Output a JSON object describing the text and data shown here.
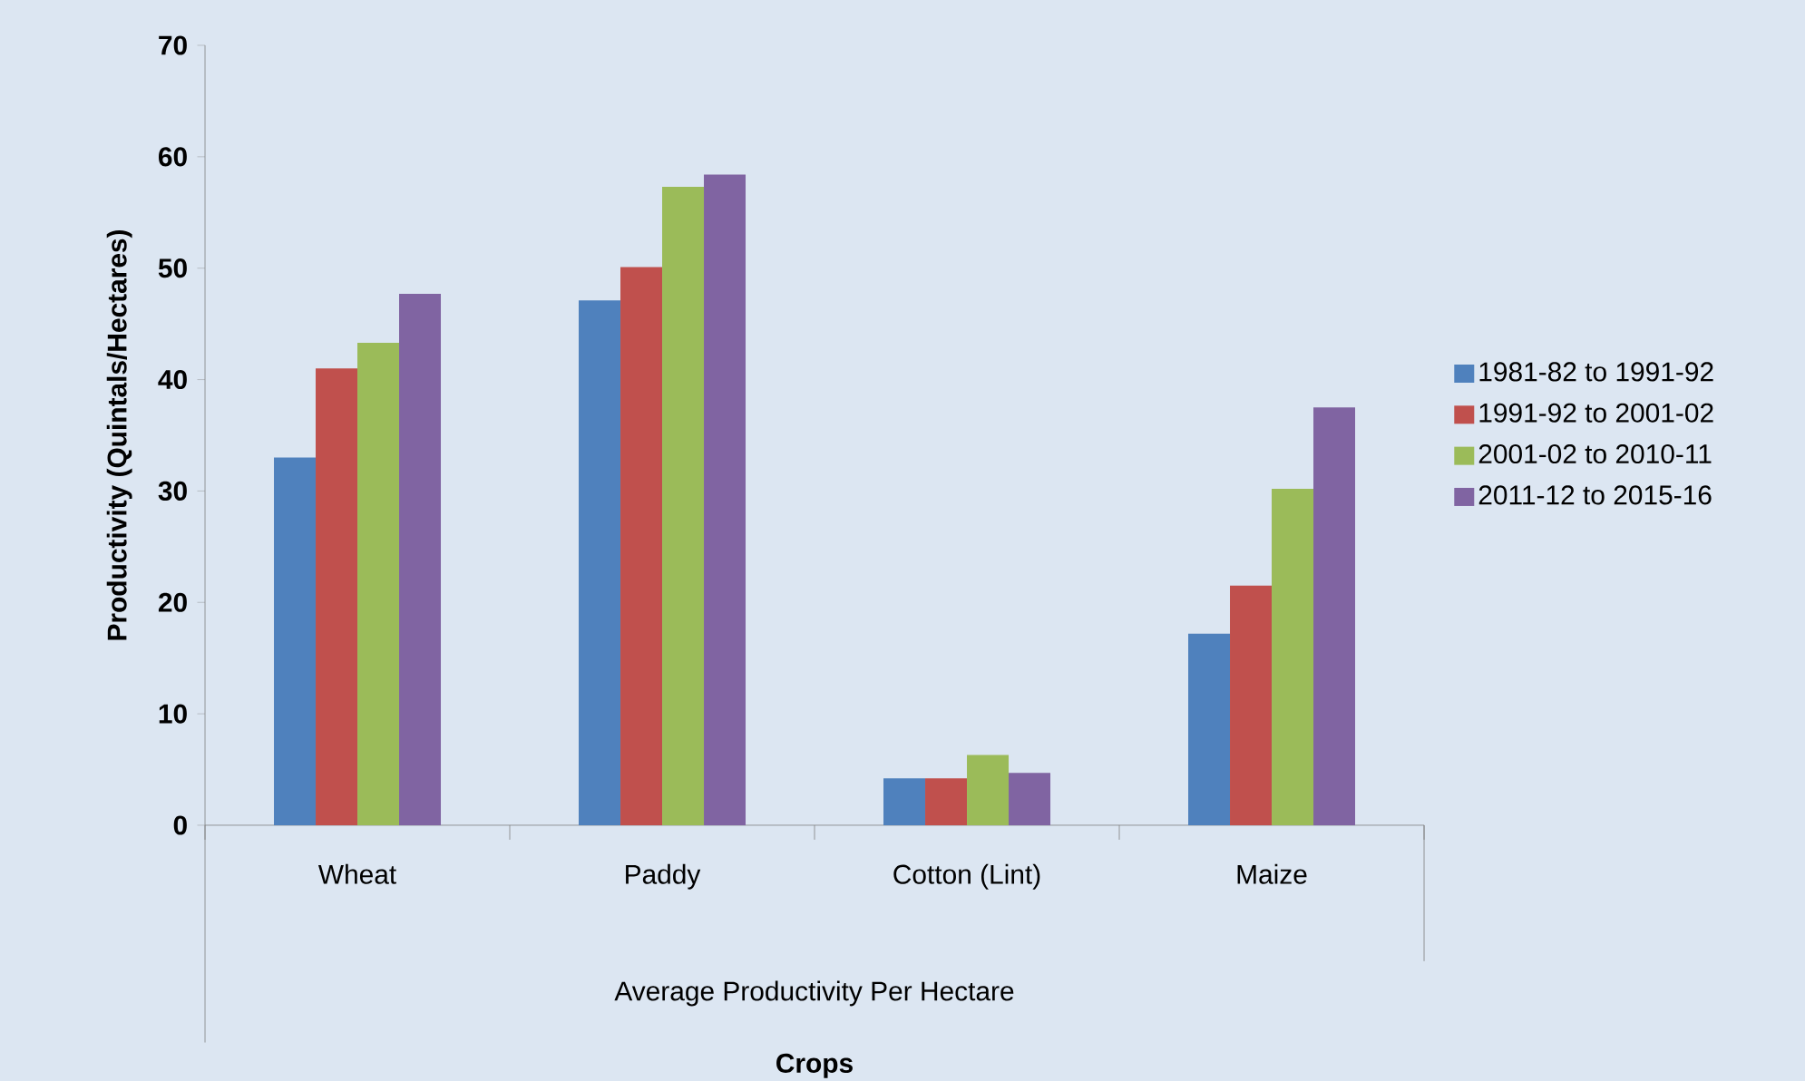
{
  "chart_data": {
    "type": "bar",
    "categories": [
      "Wheat",
      "Paddy",
      "Cotton (Lint)",
      "Maize"
    ],
    "series": [
      {
        "name": "1981-82 to 1991-92",
        "color": "#4f81bd",
        "values": [
          33,
          47.1,
          4.2,
          17.2
        ]
      },
      {
        "name": "1991-92 to 2001-02",
        "color": "#c0504d",
        "values": [
          41,
          50.1,
          4.2,
          21.5
        ]
      },
      {
        "name": "2001-02 to 2010-11",
        "color": "#9bbb59",
        "values": [
          43.3,
          57.3,
          6.3,
          30.2
        ]
      },
      {
        "name": "2011-12 to 2015-16",
        "color": "#8064a2",
        "values": [
          47.7,
          58.4,
          4.7,
          37.5
        ]
      }
    ],
    "ylim": [
      0,
      70
    ],
    "yticks": [
      0,
      10,
      20,
      30,
      40,
      50,
      60,
      70
    ],
    "ylabel": "Productivity (Quintals/Hectares)",
    "annotations": [
      "Average Productivity Per Hectare",
      "**Crops**"
    ],
    "legend": "right"
  }
}
